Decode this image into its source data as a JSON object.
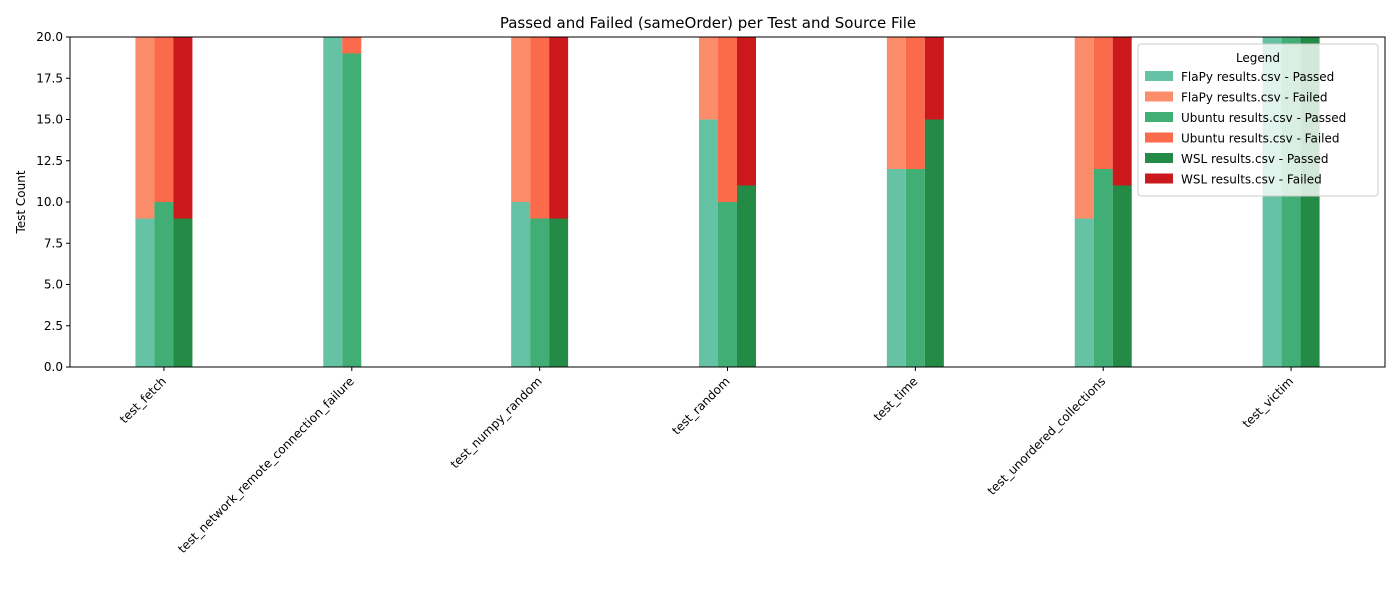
{
  "chart_data": {
    "type": "bar",
    "stacked": true,
    "title": "Passed and Failed (sameOrder) per Test and Source File",
    "xlabel": "",
    "ylabel": "Test Count",
    "ylim": [
      0,
      20
    ],
    "yticks": [
      "0.0",
      "2.5",
      "5.0",
      "7.5",
      "10.0",
      "12.5",
      "15.0",
      "17.5",
      "20.0"
    ],
    "grid": false,
    "legend_title": "Legend",
    "legend_position": "top-right",
    "categories": [
      "test_fetch",
      "test_network_remote_connection_failure",
      "test_numpy_random",
      "test_random",
      "test_time",
      "test_unordered_collections",
      "test_victim"
    ],
    "sources": [
      {
        "source": "FlaPy results.csv",
        "series": [
          {
            "name": "FlaPy results.csv - Passed",
            "color": "#66c2a5",
            "values": [
              9,
              20,
              10,
              15,
              12,
              9,
              20
            ]
          },
          {
            "name": "FlaPy results.csv - Failed",
            "color": "#fc8d6a",
            "values": [
              11,
              0,
              10,
              5,
              8,
              11,
              0
            ]
          }
        ]
      },
      {
        "source": "Ubuntu results.csv",
        "series": [
          {
            "name": "Ubuntu results.csv - Passed",
            "color": "#41ae76",
            "values": [
              10,
              19,
              9,
              10,
              12,
              12,
              20
            ]
          },
          {
            "name": "Ubuntu results.csv - Failed",
            "color": "#fb6a4a",
            "values": [
              10,
              1,
              11,
              10,
              8,
              8,
              0
            ]
          }
        ]
      },
      {
        "source": "WSL results.csv",
        "series": [
          {
            "name": "WSL results.csv - Passed",
            "color": "#238b45",
            "values": [
              9,
              0,
              9,
              11,
              15,
              11,
              20
            ]
          },
          {
            "name": "WSL results.csv - Failed",
            "color": "#cb181d",
            "values": [
              11,
              0,
              11,
              9,
              5,
              9,
              0
            ]
          }
        ]
      }
    ]
  }
}
